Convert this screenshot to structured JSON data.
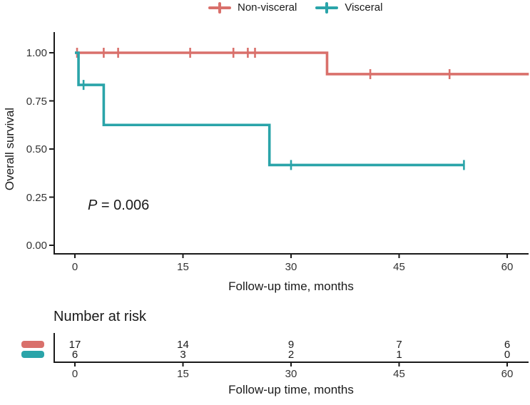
{
  "legend": {
    "items": [
      {
        "label": "Non-visceral",
        "color": "#D9706B"
      },
      {
        "label": "Visceral",
        "color": "#2AA4A9"
      }
    ]
  },
  "chart_data": {
    "type": "line",
    "subtype": "kaplan-meier-step-curves",
    "title": "",
    "xlabel": "Follow-up time, months",
    "ylabel": "Overall survival",
    "xlim": [
      0,
      63
    ],
    "ylim": [
      0,
      1
    ],
    "xticks": [
      0,
      15,
      30,
      45,
      60
    ],
    "yticks": [
      0,
      0.25,
      0.5,
      0.75,
      1
    ],
    "ytick_labels": [
      "0.00",
      "0.25",
      "0.50",
      "0.75",
      "1.00"
    ],
    "grid": false,
    "legend_position": "top-center",
    "annotation": {
      "text_italic": "P",
      "text_rest": " = 0.006"
    },
    "series": [
      {
        "name": "Non-visceral",
        "color": "#D9706B",
        "points": [
          [
            0,
            1.0
          ],
          [
            35,
            1.0
          ],
          [
            35,
            0.889
          ],
          [
            63,
            0.889
          ]
        ],
        "censor_marks": [
          [
            0.3,
            1.0
          ],
          [
            4,
            1.0
          ],
          [
            6,
            1.0
          ],
          [
            16,
            1.0
          ],
          [
            22,
            1.0
          ],
          [
            24,
            1.0
          ],
          [
            25,
            1.0
          ],
          [
            41,
            0.889
          ],
          [
            52,
            0.889
          ]
        ]
      },
      {
        "name": "Visceral",
        "color": "#2AA4A9",
        "points": [
          [
            0,
            1.0
          ],
          [
            0.5,
            1.0
          ],
          [
            0.5,
            0.833
          ],
          [
            4,
            0.833
          ],
          [
            4,
            0.625
          ],
          [
            27,
            0.625
          ],
          [
            27,
            0.417
          ],
          [
            54,
            0.417
          ]
        ],
        "censor_marks": [
          [
            1.2,
            0.833
          ],
          [
            30,
            0.417
          ],
          [
            54,
            0.417
          ]
        ]
      }
    ],
    "risk_table": {
      "title": "Number at risk",
      "xlabel": "Follow-up time, months",
      "times": [
        0,
        15,
        30,
        45,
        60
      ],
      "rows": [
        {
          "name": "Non-visceral",
          "color": "#D9706B",
          "counts": [
            "17",
            "14",
            "9",
            "7",
            "6"
          ]
        },
        {
          "name": "Visceral",
          "color": "#2AA4A9",
          "counts": [
            "6",
            "3",
            "2",
            "1",
            "0"
          ]
        }
      ]
    }
  }
}
